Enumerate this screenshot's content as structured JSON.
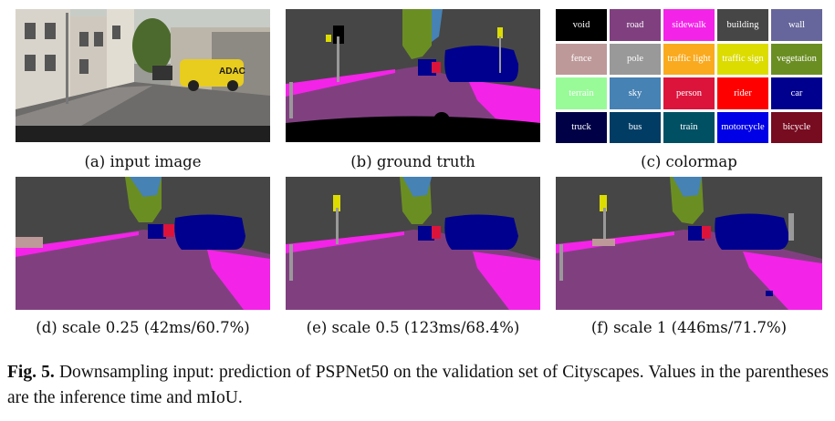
{
  "panels": [
    {
      "id": "a",
      "caption": "(a) input image"
    },
    {
      "id": "b",
      "caption": "(b) ground truth"
    },
    {
      "id": "c",
      "caption": "(c) colormap"
    },
    {
      "id": "d",
      "caption": "(d) scale 0.25 (42ms/60.7%)"
    },
    {
      "id": "e",
      "caption": "(e) scale 0.5 (123ms/68.4%)"
    },
    {
      "id": "f",
      "caption": "(f) scale 1 (446ms/71.7%)"
    }
  ],
  "input_image": {
    "sign_text": "ADAC"
  },
  "colormap": [
    {
      "name": "void",
      "bg": "#000000",
      "fg": "#ffffff"
    },
    {
      "name": "road",
      "bg": "#804080",
      "fg": "#ffffff"
    },
    {
      "name": "sidewalk",
      "bg": "#f423e8",
      "fg": "#ffffff"
    },
    {
      "name": "building",
      "bg": "#464646",
      "fg": "#ffffff"
    },
    {
      "name": "wall",
      "bg": "#66669c",
      "fg": "#ffffff"
    },
    {
      "name": "fence",
      "bg": "#be9999",
      "fg": "#ffffff"
    },
    {
      "name": "pole",
      "bg": "#999999",
      "fg": "#ffffff"
    },
    {
      "name": "traffic light",
      "bg": "#faaa1e",
      "fg": "#ffffff"
    },
    {
      "name": "traffic sign",
      "bg": "#dcdc00",
      "fg": "#ffffff"
    },
    {
      "name": "vegetation",
      "bg": "#6b8e23",
      "fg": "#ffffff"
    },
    {
      "name": "terrain",
      "bg": "#98fb98",
      "fg": "#ffffff"
    },
    {
      "name": "sky",
      "bg": "#4682b4",
      "fg": "#ffffff"
    },
    {
      "name": "person",
      "bg": "#dc143c",
      "fg": "#ffffff"
    },
    {
      "name": "rider",
      "bg": "#ff0000",
      "fg": "#ffffff"
    },
    {
      "name": "car",
      "bg": "#00008e",
      "fg": "#ffffff"
    },
    {
      "name": "truck",
      "bg": "#000046",
      "fg": "#ffffff"
    },
    {
      "name": "bus",
      "bg": "#003c64",
      "fg": "#ffffff"
    },
    {
      "name": "train",
      "bg": "#005064",
      "fg": "#ffffff"
    },
    {
      "name": "motorcycle",
      "bg": "#0000e6",
      "fg": "#ffffff"
    },
    {
      "name": "bicycle",
      "bg": "#770b20",
      "fg": "#ffffff"
    }
  ],
  "caption": {
    "label": "Fig. 5.",
    "text": " Downsampling input: prediction of PSPNet50 on the validation set of Cityscapes. Values in the parentheses are the inference time and mIoU."
  }
}
